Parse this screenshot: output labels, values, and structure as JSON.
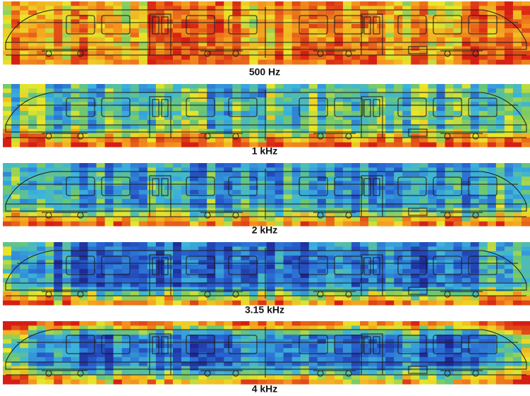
{
  "panels": [
    {
      "label": "500 Hz"
    },
    {
      "label": "1 kHz"
    },
    {
      "label": "2 kHz"
    },
    {
      "label": "3.15 kHz"
    },
    {
      "label": "4 kHz"
    }
  ]
}
